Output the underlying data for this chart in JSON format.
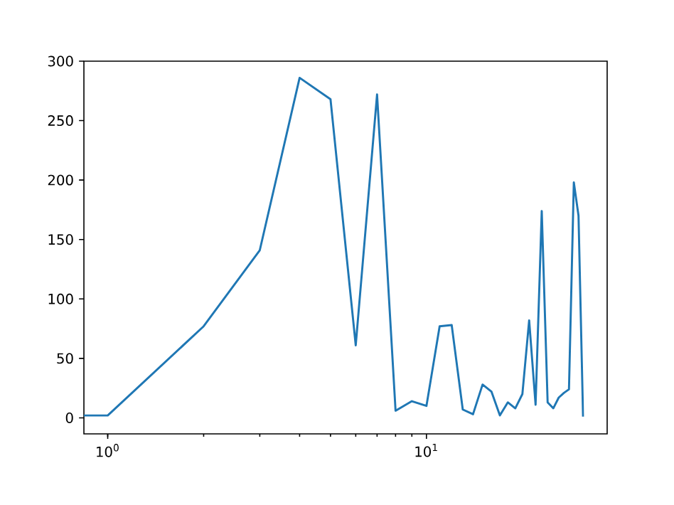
{
  "chart_data": {
    "type": "line",
    "log": "x",
    "x": [
      0.842,
      1,
      2,
      3,
      4,
      5,
      6,
      7,
      8,
      9,
      10,
      11,
      12,
      13,
      14,
      15,
      16,
      17,
      18,
      19,
      20,
      21,
      22,
      23,
      24,
      25,
      26,
      27,
      28,
      29,
      30,
      31
    ],
    "series": [
      {
        "color": "#1f77b4",
        "values": [
          2,
          2,
          77,
          141,
          286,
          268,
          61,
          272,
          6,
          14,
          10,
          77,
          78,
          7,
          3,
          28,
          22,
          2,
          13,
          8,
          20,
          82,
          11,
          174,
          13,
          8,
          17,
          21,
          24,
          198,
          170,
          1
        ]
      }
    ],
    "xlim": [
      0.842,
      36.9
    ],
    "ylim": [
      -13.5,
      300
    ],
    "xticks": [
      {
        "value": 1,
        "label": "10$^{0}$"
      },
      {
        "value": 10,
        "label": "10$^{1}$"
      }
    ],
    "yticks": [
      0,
      50,
      100,
      150,
      200,
      250,
      300
    ],
    "grid": false,
    "marker": "none",
    "line_style": "solid"
  }
}
